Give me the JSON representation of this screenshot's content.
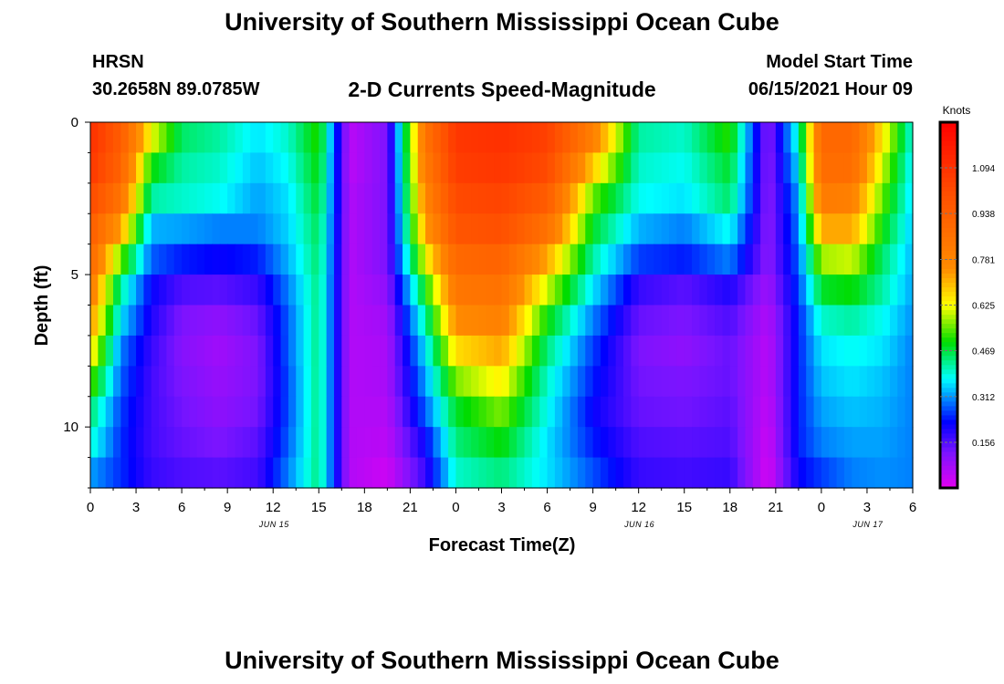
{
  "title": "University of Southern Mississippi Ocean Cube",
  "footer_title": "University of Southern Mississippi Ocean Cube",
  "station": {
    "name": "HRSN",
    "coords": "30.2658N  89.0785W"
  },
  "model": {
    "label": "Model Start Time",
    "value": "06/15/2021 Hour 09"
  },
  "chart_data": {
    "type": "heatmap",
    "title": "2-D Currents Speed-Magnitude",
    "xlabel": "Forecast Time(Z)",
    "ylabel": "Depth (ft)",
    "units": "Knots",
    "x_tick_labels": [
      "0",
      "3",
      "6",
      "9",
      "12",
      "15",
      "18",
      "21",
      "0",
      "3",
      "6",
      "9",
      "12",
      "15",
      "18",
      "21",
      "0",
      "3",
      "6"
    ],
    "x_range_hours": [
      0,
      54
    ],
    "date_labels": [
      {
        "text": "JUN 15",
        "hour": 12
      },
      {
        "text": "JUN 16",
        "hour": 36
      },
      {
        "text": "JUN 17",
        "hour": 51
      }
    ],
    "y_tick_labels": [
      "0",
      "5",
      "10"
    ],
    "y_range_ft": [
      0,
      12
    ],
    "colorbar_ticks": [
      "1.094",
      "0.938",
      "0.781",
      "0.625",
      "0.469",
      "0.312",
      "0.156"
    ],
    "colorbar_range": [
      0,
      1.25
    ],
    "depth_levels_ft": [
      0.5,
      1.5,
      2.5,
      3.5,
      4.5,
      5.5,
      6.5,
      7.5,
      8.5,
      9.5,
      10.5,
      11.5
    ],
    "keyframes_hours": [
      0,
      2,
      4,
      6,
      8.5,
      11,
      13,
      15,
      17,
      19.5,
      22,
      24,
      27,
      30,
      33,
      36,
      39,
      42,
      44.5,
      46.5,
      48,
      50,
      52,
      54
    ],
    "keyframe_speeds": [
      [
        1.1,
        0.95,
        0.62,
        0.45,
        0.42,
        0.36,
        0.4,
        0.52,
        0.05,
        0.12,
        0.85,
        1.08,
        1.1,
        1.05,
        0.8,
        0.42,
        0.4,
        0.52,
        0.1,
        0.4,
        0.9,
        0.9,
        0.65,
        0.38
      ],
      [
        1.08,
        0.92,
        0.5,
        0.42,
        0.4,
        0.34,
        0.38,
        0.5,
        0.05,
        0.12,
        0.82,
        1.06,
        1.08,
        1.02,
        0.68,
        0.4,
        0.38,
        0.48,
        0.1,
        0.36,
        0.88,
        0.88,
        0.6,
        0.36
      ],
      [
        1.02,
        0.85,
        0.42,
        0.4,
        0.38,
        0.32,
        0.36,
        0.48,
        0.06,
        0.12,
        0.78,
        1.02,
        1.04,
        0.95,
        0.55,
        0.38,
        0.36,
        0.45,
        0.1,
        0.32,
        0.82,
        0.8,
        0.55,
        0.35
      ],
      [
        0.95,
        0.72,
        0.33,
        0.32,
        0.3,
        0.3,
        0.35,
        0.46,
        0.06,
        0.12,
        0.72,
        0.98,
        1.0,
        0.86,
        0.48,
        0.33,
        0.3,
        0.38,
        0.1,
        0.3,
        0.72,
        0.72,
        0.5,
        0.34
      ],
      [
        0.9,
        0.55,
        0.28,
        0.24,
        0.22,
        0.24,
        0.33,
        0.45,
        0.06,
        0.12,
        0.62,
        0.9,
        0.92,
        0.72,
        0.42,
        0.26,
        0.24,
        0.3,
        0.1,
        0.28,
        0.58,
        0.6,
        0.45,
        0.33
      ],
      [
        0.82,
        0.42,
        0.22,
        0.16,
        0.15,
        0.18,
        0.3,
        0.44,
        0.06,
        0.1,
        0.5,
        0.84,
        0.86,
        0.6,
        0.36,
        0.18,
        0.15,
        0.2,
        0.08,
        0.26,
        0.48,
        0.5,
        0.42,
        0.32
      ],
      [
        0.75,
        0.36,
        0.2,
        0.12,
        0.1,
        0.14,
        0.28,
        0.44,
        0.06,
        0.08,
        0.42,
        0.76,
        0.8,
        0.5,
        0.3,
        0.14,
        0.12,
        0.16,
        0.06,
        0.24,
        0.4,
        0.42,
        0.38,
        0.31
      ],
      [
        0.66,
        0.3,
        0.18,
        0.11,
        0.08,
        0.12,
        0.28,
        0.44,
        0.06,
        0.07,
        0.36,
        0.66,
        0.72,
        0.44,
        0.26,
        0.12,
        0.1,
        0.14,
        0.05,
        0.24,
        0.36,
        0.38,
        0.36,
        0.3
      ],
      [
        0.55,
        0.28,
        0.17,
        0.12,
        0.09,
        0.12,
        0.27,
        0.44,
        0.06,
        0.07,
        0.32,
        0.56,
        0.64,
        0.4,
        0.24,
        0.13,
        0.12,
        0.14,
        0.05,
        0.24,
        0.34,
        0.36,
        0.34,
        0.3
      ],
      [
        0.45,
        0.26,
        0.17,
        0.13,
        0.1,
        0.13,
        0.27,
        0.44,
        0.06,
        0.06,
        0.28,
        0.48,
        0.56,
        0.38,
        0.22,
        0.14,
        0.13,
        0.15,
        0.04,
        0.24,
        0.32,
        0.34,
        0.33,
        0.3
      ],
      [
        0.4,
        0.25,
        0.17,
        0.14,
        0.12,
        0.15,
        0.28,
        0.44,
        0.06,
        0.05,
        0.22,
        0.44,
        0.5,
        0.36,
        0.24,
        0.16,
        0.15,
        0.16,
        0.03,
        0.24,
        0.3,
        0.32,
        0.32,
        0.3
      ],
      [
        0.32,
        0.25,
        0.18,
        0.16,
        0.15,
        0.17,
        0.3,
        0.44,
        0.06,
        0.03,
        0.18,
        0.4,
        0.44,
        0.36,
        0.27,
        0.18,
        0.17,
        0.18,
        0.02,
        0.22,
        0.26,
        0.3,
        0.31,
        0.3
      ]
    ]
  }
}
